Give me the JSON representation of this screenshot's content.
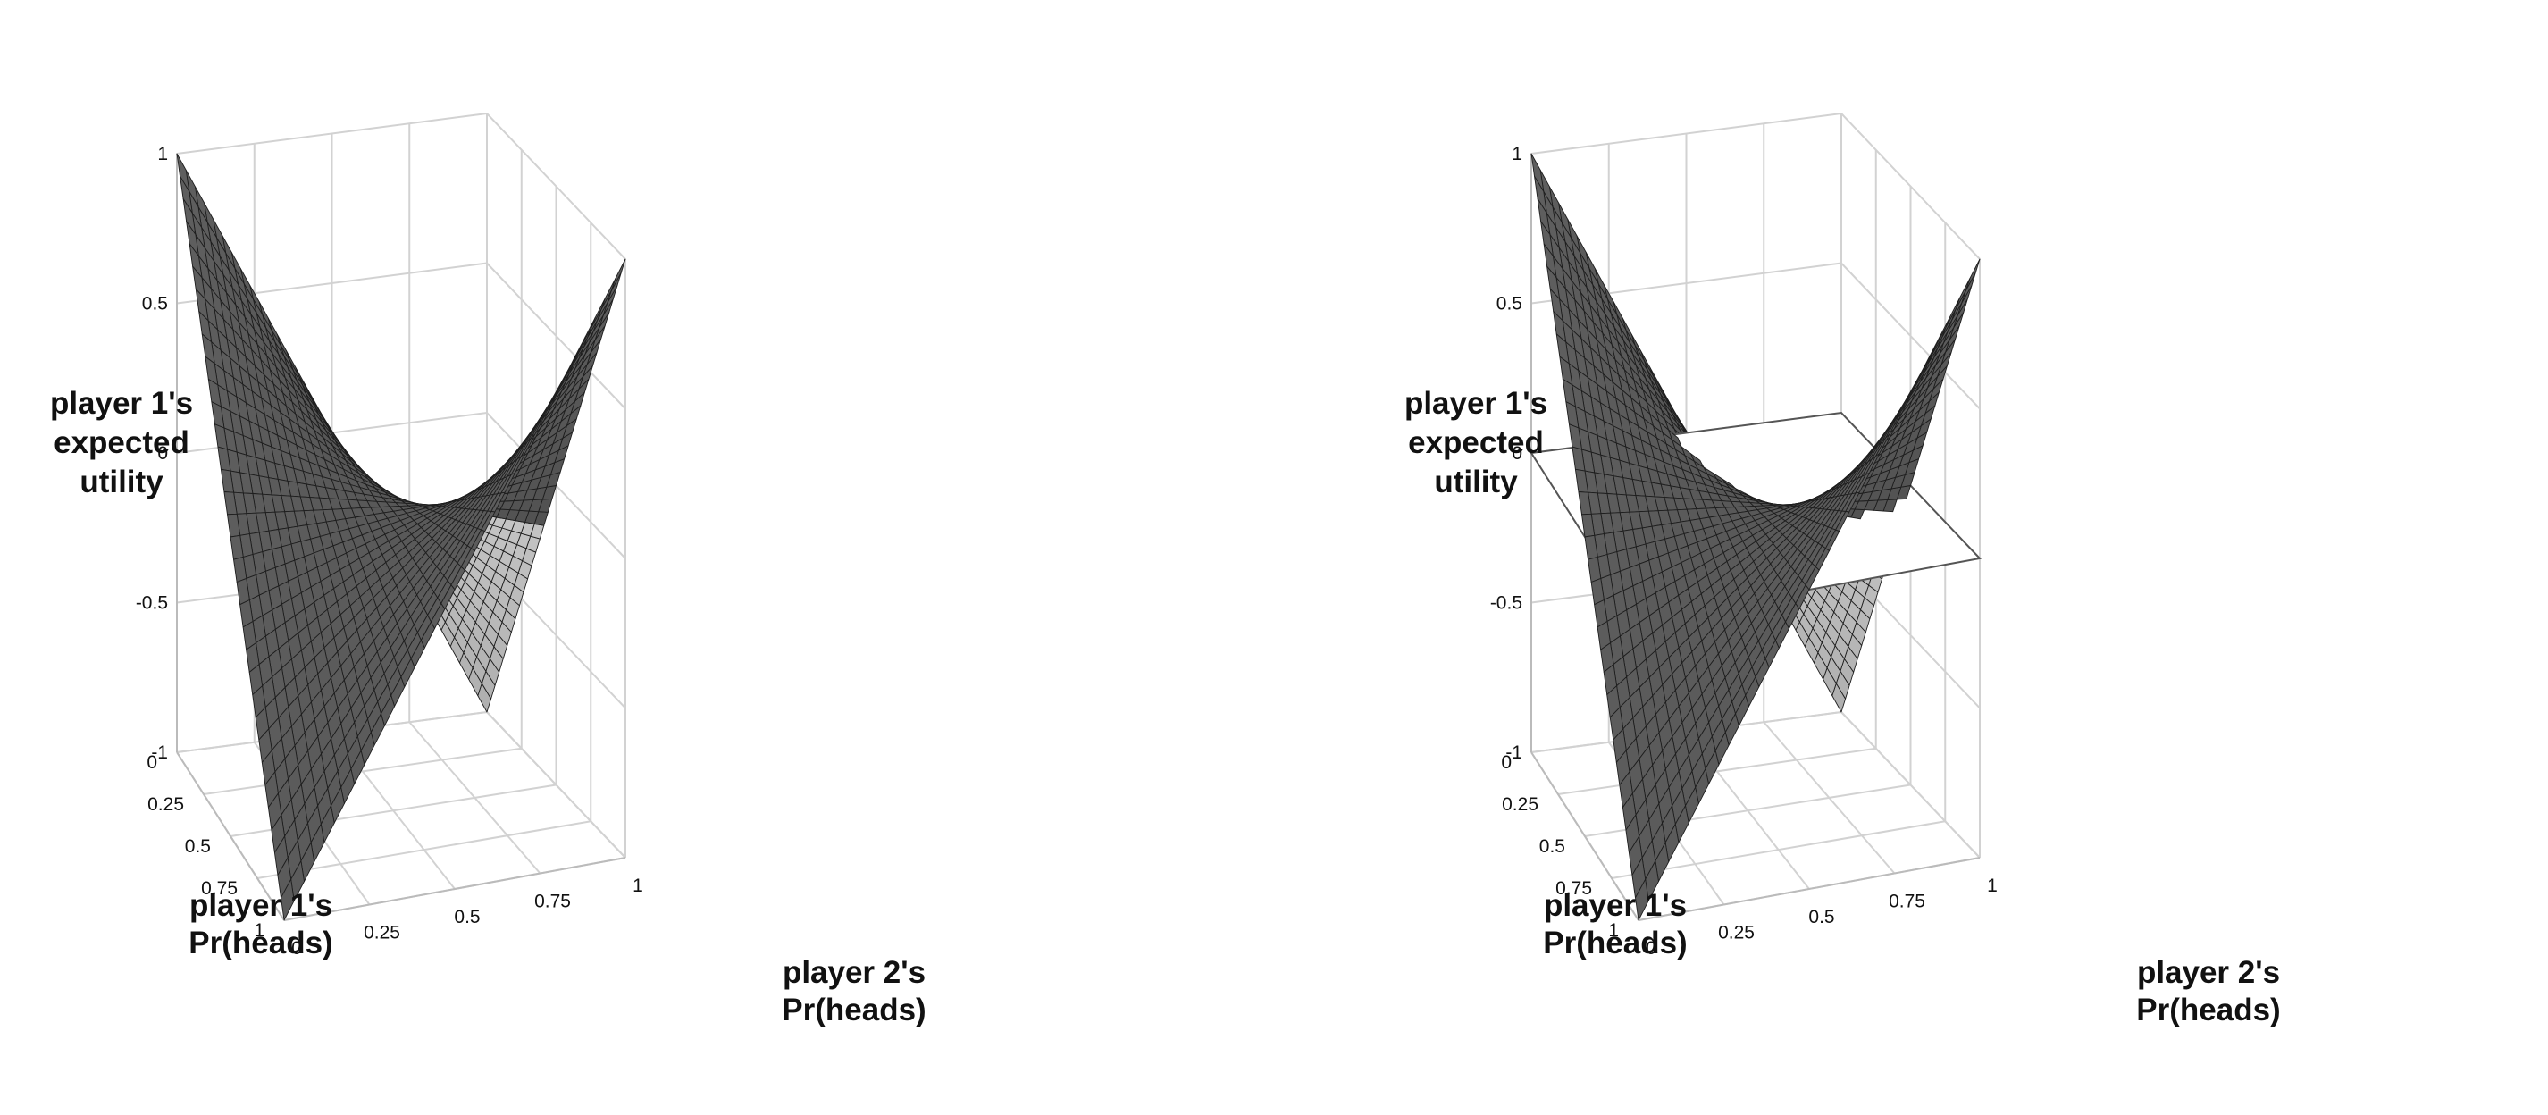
{
  "chart_data": [
    {
      "type": "surface",
      "title": "",
      "zlabel": [
        "player 1's",
        "expected",
        "utility"
      ],
      "xlabel": [
        "player 2's",
        "Pr(heads)"
      ],
      "ylabel": [
        "player 1's",
        "Pr(heads)"
      ],
      "z_ticks": [
        "1",
        "0.5",
        "0",
        "-0.5",
        "-1"
      ],
      "x_ticks": [
        "0",
        "0.25",
        "0.5",
        "0.75",
        "1"
      ],
      "y_ticks": [
        "0",
        "0.25",
        "0.5",
        "0.75",
        "1"
      ],
      "zlim": [
        -1,
        1
      ],
      "xlim": [
        0,
        1
      ],
      "ylim": [
        0,
        1
      ],
      "function": "z = (2x - 1)(2y - 1)",
      "corners": {
        "x0_y0": 1,
        "x1_y0": -1,
        "x0_y1": -1,
        "x1_y1": 1
      },
      "plane_z": null,
      "grid": true,
      "surface_color": "#4a4a4a",
      "grid_line_color": "#222222"
    },
    {
      "type": "surface",
      "title": "",
      "zlabel": [
        "player 1's",
        "expected",
        "utility"
      ],
      "xlabel": [
        "player 2's",
        "Pr(heads)"
      ],
      "ylabel": [
        "player 1's",
        "Pr(heads)"
      ],
      "z_ticks": [
        "1",
        "0.5",
        "0",
        "-0.5",
        "-1"
      ],
      "x_ticks": [
        "0",
        "0.25",
        "0.5",
        "0.75",
        "1"
      ],
      "y_ticks": [
        "0",
        "0.25",
        "0.5",
        "0.75",
        "1"
      ],
      "zlim": [
        -1,
        1
      ],
      "xlim": [
        0,
        1
      ],
      "ylim": [
        0,
        1
      ],
      "function": "z = (2x - 1)(2y - 1)",
      "corners": {
        "x0_y0": 1,
        "x1_y0": -1,
        "x0_y1": -1,
        "x1_y1": 1
      },
      "plane_z": 0,
      "grid": true,
      "surface_color": "#4a4a4a",
      "grid_line_color": "#222222"
    }
  ]
}
